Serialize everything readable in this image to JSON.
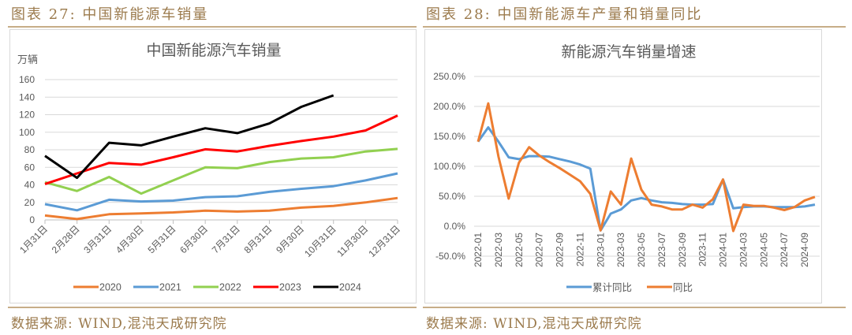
{
  "left": {
    "figure_label": "图表 27:  中国新能源车销量",
    "source": "数据来源:  WIND,混沌天成研究院"
  },
  "right": {
    "figure_label": "图表 28:  中国新能源车产量和销量同比",
    "source": "数据来源:  WIND,混沌天成研究院"
  },
  "chart_data": [
    {
      "type": "line",
      "title": "中国新能源汽车销量",
      "ylabel": "万辆",
      "xlabel": "",
      "ylim": [
        0,
        160
      ],
      "yticks": [
        0,
        20,
        40,
        60,
        80,
        100,
        120,
        140,
        160
      ],
      "grid": true,
      "legend_position": "bottom",
      "categories": [
        "1月31日",
        "2月28日",
        "3月31日",
        "4月30日",
        "5月31日",
        "6月30日",
        "7月31日",
        "8月31日",
        "9月30日",
        "10月31日",
        "11月30日",
        "12月31日"
      ],
      "series": [
        {
          "name": "2020",
          "color": "#ed7d31",
          "values": [
            5,
            1,
            6.5,
            7.5,
            8.5,
            10.5,
            9.5,
            10.5,
            14,
            16,
            20,
            25
          ]
        },
        {
          "name": "2021",
          "color": "#5b9bd5",
          "values": [
            18,
            11,
            23,
            21,
            22,
            26,
            27,
            32,
            35.5,
            38.5,
            45,
            53
          ]
        },
        {
          "name": "2022",
          "color": "#92d050",
          "values": [
            43,
            33,
            49,
            30,
            45,
            60,
            59,
            66,
            70,
            71.5,
            78,
            81
          ]
        },
        {
          "name": "2023",
          "color": "#ff0000",
          "values": [
            41,
            53,
            65,
            63,
            71.5,
            80.5,
            78,
            84.5,
            90,
            95,
            102,
            119
          ]
        },
        {
          "name": "2024",
          "color": "#000000",
          "values": [
            73,
            48,
            88,
            85,
            95,
            104.5,
            99,
            110,
            129,
            142,
            null,
            null
          ]
        }
      ]
    },
    {
      "type": "line",
      "title": "新能源汽车销量增速",
      "xlabel": "",
      "ylabel": "",
      "ylim": [
        -50,
        250
      ],
      "yticks": [
        "-50.0%",
        "0.0%",
        "50.0%",
        "100.0%",
        "150.0%",
        "200.0%",
        "250.0%"
      ],
      "ytick_values": [
        -50,
        0,
        50,
        100,
        150,
        200,
        250
      ],
      "grid": true,
      "legend_position": "bottom",
      "x": [
        "2022-01",
        "2022-02",
        "2022-03",
        "2022-04",
        "2022-05",
        "2022-06",
        "2022-07",
        "2022-08",
        "2022-09",
        "2022-10",
        "2022-11",
        "2022-12",
        "2023-01",
        "2023-02",
        "2023-03",
        "2023-04",
        "2023-05",
        "2023-06",
        "2023-07",
        "2023-08",
        "2023-09",
        "2023-10",
        "2023-11",
        "2023-12",
        "2024-01",
        "2024-02",
        "2024-03",
        "2024-04",
        "2024-05",
        "2024-06",
        "2024-07",
        "2024-08",
        "2024-09",
        "2024-10"
      ],
      "xtick_labels": [
        "2022-01",
        "2022-03",
        "2022-05",
        "2022-07",
        "2022-09",
        "2022-11",
        "2023-01",
        "2023-03",
        "2023-05",
        "2023-07",
        "2023-09",
        "2023-11",
        "2024-01",
        "2024-03",
        "2024-05",
        "2024-07",
        "2024-09"
      ],
      "series": [
        {
          "name": "累计同比",
          "color": "#5b9bd5",
          "values": [
            141,
            165,
            141,
            115,
            112,
            117,
            117,
            116,
            112,
            108,
            103,
            96,
            -7,
            21,
            28,
            43,
            47,
            43,
            40,
            39,
            37,
            36,
            36,
            37,
            78,
            30,
            32,
            33,
            33,
            32,
            32,
            32,
            33,
            36
          ]
        },
        {
          "name": "同比",
          "color": "#ed7d31",
          "values": [
            141,
            205,
            116,
            46,
            106,
            132,
            118,
            107,
            97,
            86,
            75,
            54,
            -7,
            58,
            36,
            113,
            61,
            36,
            33,
            28,
            28,
            36,
            31,
            45,
            78,
            -8,
            36,
            34,
            34,
            31,
            27,
            32,
            43,
            49
          ]
        }
      ]
    }
  ]
}
